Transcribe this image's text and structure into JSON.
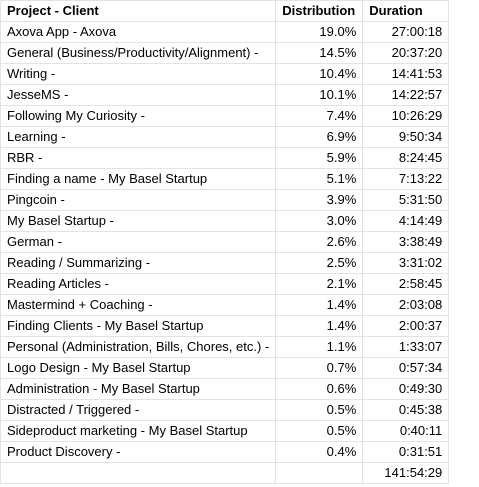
{
  "header": {
    "project": "Project - Client",
    "distribution": "Distribution",
    "duration": "Duration"
  },
  "rows": [
    {
      "project": "Axova App - Axova",
      "distribution": "19.0%",
      "duration": "27:00:18"
    },
    {
      "project": "General (Business/Productivity/Alignment) -",
      "distribution": "14.5%",
      "duration": "20:37:20"
    },
    {
      "project": "Writing -",
      "distribution": "10.4%",
      "duration": "14:41:53"
    },
    {
      "project": "JesseMS -",
      "distribution": "10.1%",
      "duration": "14:22:57"
    },
    {
      "project": "Following My Curiosity -",
      "distribution": "7.4%",
      "duration": "10:26:29"
    },
    {
      "project": "Learning -",
      "distribution": "6.9%",
      "duration": "9:50:34"
    },
    {
      "project": "RBR -",
      "distribution": "5.9%",
      "duration": "8:24:45"
    },
    {
      "project": "Finding a name - My Basel Startup",
      "distribution": "5.1%",
      "duration": "7:13:22"
    },
    {
      "project": "Pingcoin -",
      "distribution": "3.9%",
      "duration": "5:31:50"
    },
    {
      "project": "My Basel Startup -",
      "distribution": "3.0%",
      "duration": "4:14:49"
    },
    {
      "project": "German -",
      "distribution": "2.6%",
      "duration": "3:38:49"
    },
    {
      "project": "Reading / Summarizing -",
      "distribution": "2.5%",
      "duration": "3:31:02"
    },
    {
      "project": "Reading Articles -",
      "distribution": "2.1%",
      "duration": "2:58:45"
    },
    {
      "project": "Mastermind + Coaching -",
      "distribution": "1.4%",
      "duration": "2:03:08"
    },
    {
      "project": "Finding Clients - My Basel Startup",
      "distribution": "1.4%",
      "duration": "2:00:37"
    },
    {
      "project": "Personal (Administration, Bills, Chores, etc.) -",
      "distribution": "1.1%",
      "duration": "1:33:07"
    },
    {
      "project": "Logo Design - My Basel Startup",
      "distribution": "0.7%",
      "duration": "0:57:34"
    },
    {
      "project": "Administration - My Basel Startup",
      "distribution": "0.6%",
      "duration": "0:49:30"
    },
    {
      "project": "Distracted / Triggered -",
      "distribution": "0.5%",
      "duration": "0:45:38"
    },
    {
      "project": "Sideproduct marketing - My Basel Startup",
      "distribution": "0.5%",
      "duration": "0:40:11"
    },
    {
      "project": "Product Discovery -",
      "distribution": "0.4%",
      "duration": "0:31:51"
    }
  ],
  "total": {
    "duration": "141:54:29"
  }
}
